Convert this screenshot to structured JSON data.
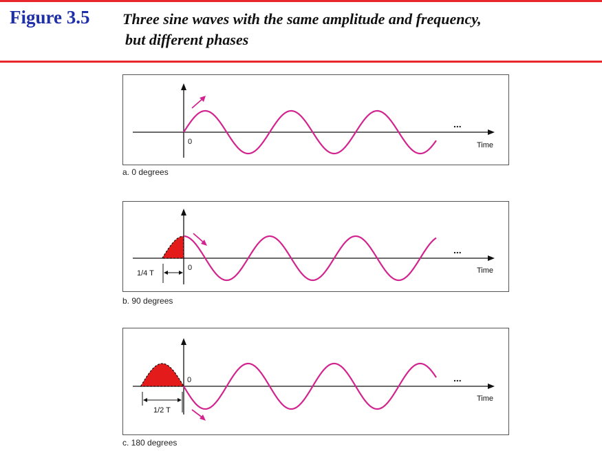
{
  "figure": {
    "number": "Figure 3.5",
    "caption_line1": "Three sine waves with the same amplitude and frequency,",
    "caption_line2": "but different phases"
  },
  "panels": [
    {
      "origin_label": "0",
      "axis_label": "Time",
      "continuation": "...",
      "caption": "a. 0 degrees",
      "phase_degrees": 0,
      "shift_label": ""
    },
    {
      "origin_label": "0",
      "axis_label": "Time",
      "continuation": "...",
      "caption": "b. 90 degrees",
      "phase_degrees": 90,
      "shift_label": "1/4 T"
    },
    {
      "origin_label": "0",
      "axis_label": "Time",
      "continuation": "...",
      "caption": "c. 180 degrees",
      "phase_degrees": 180,
      "shift_label": "1/2 T"
    }
  ],
  "colors": {
    "title": "#1f2fa8",
    "rule": "#e8272d",
    "wave": "#d1248f",
    "fill": "#e31b1b",
    "axis": "#111111"
  }
}
